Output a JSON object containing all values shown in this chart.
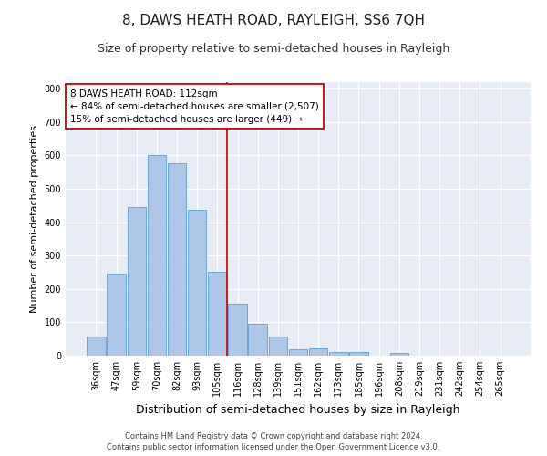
{
  "title": "8, DAWS HEATH ROAD, RAYLEIGH, SS6 7QH",
  "subtitle": "Size of property relative to semi-detached houses in Rayleigh",
  "xlabel": "Distribution of semi-detached houses by size in Rayleigh",
  "ylabel": "Number of semi-detached properties",
  "footer_line1": "Contains HM Land Registry data © Crown copyright and database right 2024.",
  "footer_line2": "Contains public sector information licensed under the Open Government Licence v3.0.",
  "categories": [
    "36sqm",
    "47sqm",
    "59sqm",
    "70sqm",
    "82sqm",
    "93sqm",
    "105sqm",
    "116sqm",
    "128sqm",
    "139sqm",
    "151sqm",
    "162sqm",
    "173sqm",
    "185sqm",
    "196sqm",
    "208sqm",
    "219sqm",
    "231sqm",
    "242sqm",
    "254sqm",
    "265sqm"
  ],
  "values": [
    58,
    245,
    445,
    600,
    577,
    438,
    252,
    157,
    97,
    58,
    20,
    23,
    12,
    10,
    0,
    7,
    0,
    0,
    0,
    0,
    0
  ],
  "bar_color": "#aec6e8",
  "bar_edge_color": "#5a9fd4",
  "vline_index": 7,
  "vline_color": "#cc0000",
  "annotation_line1": "8 DAWS HEATH ROAD: 112sqm",
  "annotation_line2": "← 84% of semi-detached houses are smaller (2,507)",
  "annotation_line3": "15% of semi-detached houses are larger (449) →",
  "annotation_box_edge": "#cc0000",
  "annotation_box_face": "#ffffff",
  "ylim": [
    0,
    820
  ],
  "yticks": [
    0,
    100,
    200,
    300,
    400,
    500,
    600,
    700,
    800
  ],
  "background_color": "#e8edf5",
  "grid_color": "#ffffff",
  "title_fontsize": 11,
  "subtitle_fontsize": 9,
  "xlabel_fontsize": 9,
  "ylabel_fontsize": 8,
  "tick_fontsize": 7,
  "annotation_fontsize": 7.5,
  "footer_fontsize": 6
}
